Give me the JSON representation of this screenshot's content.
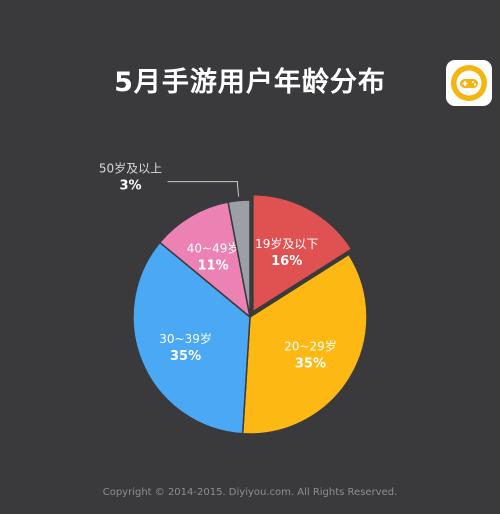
{
  "title": "5月手游用户年龄分布",
  "footer": "Copyright © 2014-2015. Diyiyou.com. All Rights Reserved.",
  "logo_icon": "gamepad-icon",
  "colors": {
    "background": "#3a3a3d",
    "slice_19_below": "#e05252",
    "slice_20_29": "#fdb813",
    "slice_30_39": "#4aa8f5",
    "slice_40_49": "#ec82b4",
    "slice_50_up": "#9aa0a6"
  },
  "chart_data": {
    "type": "pie",
    "title": "5月手游用户年龄分布",
    "slices": [
      {
        "label": "19岁及以下",
        "value": 16,
        "value_label": "16%",
        "color": "#e05252"
      },
      {
        "label": "20~29岁",
        "value": 35,
        "value_label": "35%",
        "color": "#fdb813"
      },
      {
        "label": "30~39岁",
        "value": 35,
        "value_label": "35%",
        "color": "#4aa8f5"
      },
      {
        "label": "40~49岁",
        "value": 11,
        "value_label": "11%",
        "color": "#ec82b4"
      },
      {
        "label": "50岁及以上",
        "value": 3,
        "value_label": "3%",
        "color": "#9aa0a6"
      }
    ]
  }
}
